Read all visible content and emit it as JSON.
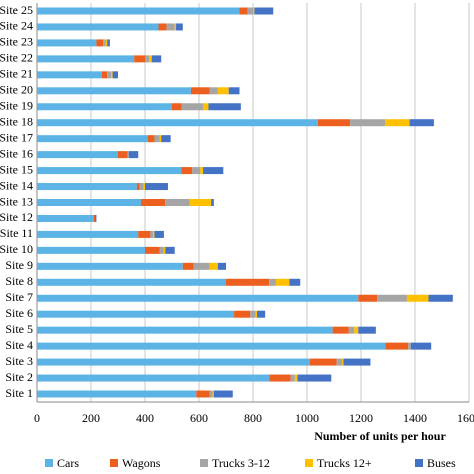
{
  "chart_data": {
    "type": "stacked-barh",
    "xlabel": "Number of units per hour",
    "categories": [
      "Site 1",
      "Site 2",
      "Site 3",
      "Site 4",
      "Site 5",
      "Site 6",
      "Site 7",
      "Site 8",
      "Site 9",
      "Site 10",
      "Site 11",
      "Site 12",
      "Site 13",
      "Site 14",
      "Site 15",
      "Site 16",
      "Site 17",
      "Site 18",
      "Site 19",
      "Site 20",
      "Site 21",
      "Site 22",
      "Site 23",
      "Site 24",
      "Site 25"
    ],
    "series": [
      {
        "name": "Cars",
        "color": "#5bb4e5",
        "values": [
          590,
          860,
          1010,
          1290,
          1095,
          730,
          1190,
          700,
          540,
          400,
          375,
          210,
          385,
          370,
          535,
          300,
          410,
          1040,
          500,
          570,
          240,
          360,
          220,
          450,
          750
        ]
      },
      {
        "name": "Wagons",
        "color": "#ed5f1f",
        "values": [
          50,
          80,
          100,
          85,
          60,
          60,
          70,
          160,
          40,
          55,
          45,
          5,
          90,
          10,
          40,
          35,
          25,
          120,
          35,
          70,
          20,
          40,
          25,
          30,
          30
        ]
      },
      {
        "name": "Trucks 3-12",
        "color": "#a5a5a5",
        "values": [
          10,
          15,
          20,
          10,
          20,
          20,
          110,
          25,
          60,
          15,
          10,
          0,
          90,
          15,
          30,
          5,
          20,
          130,
          80,
          30,
          15,
          15,
          10,
          30,
          20
        ]
      },
      {
        "name": "Trucks 12+",
        "color": "#ffc000",
        "values": [
          5,
          10,
          5,
          0,
          15,
          5,
          80,
          50,
          30,
          5,
          5,
          0,
          80,
          5,
          10,
          0,
          5,
          90,
          20,
          40,
          5,
          10,
          5,
          5,
          5
        ]
      },
      {
        "name": "Buses",
        "color": "#4472c4",
        "values": [
          70,
          125,
          100,
          75,
          65,
          30,
          90,
          40,
          30,
          35,
          35,
          5,
          10,
          85,
          75,
          35,
          35,
          90,
          120,
          40,
          20,
          35,
          10,
          25,
          70
        ]
      }
    ],
    "xlim": [
      0,
      1600
    ],
    "xticks": [
      0,
      200,
      400,
      600,
      800,
      1000,
      1200,
      1400,
      1600
    ],
    "grid": true,
    "legend": "bottom"
  }
}
